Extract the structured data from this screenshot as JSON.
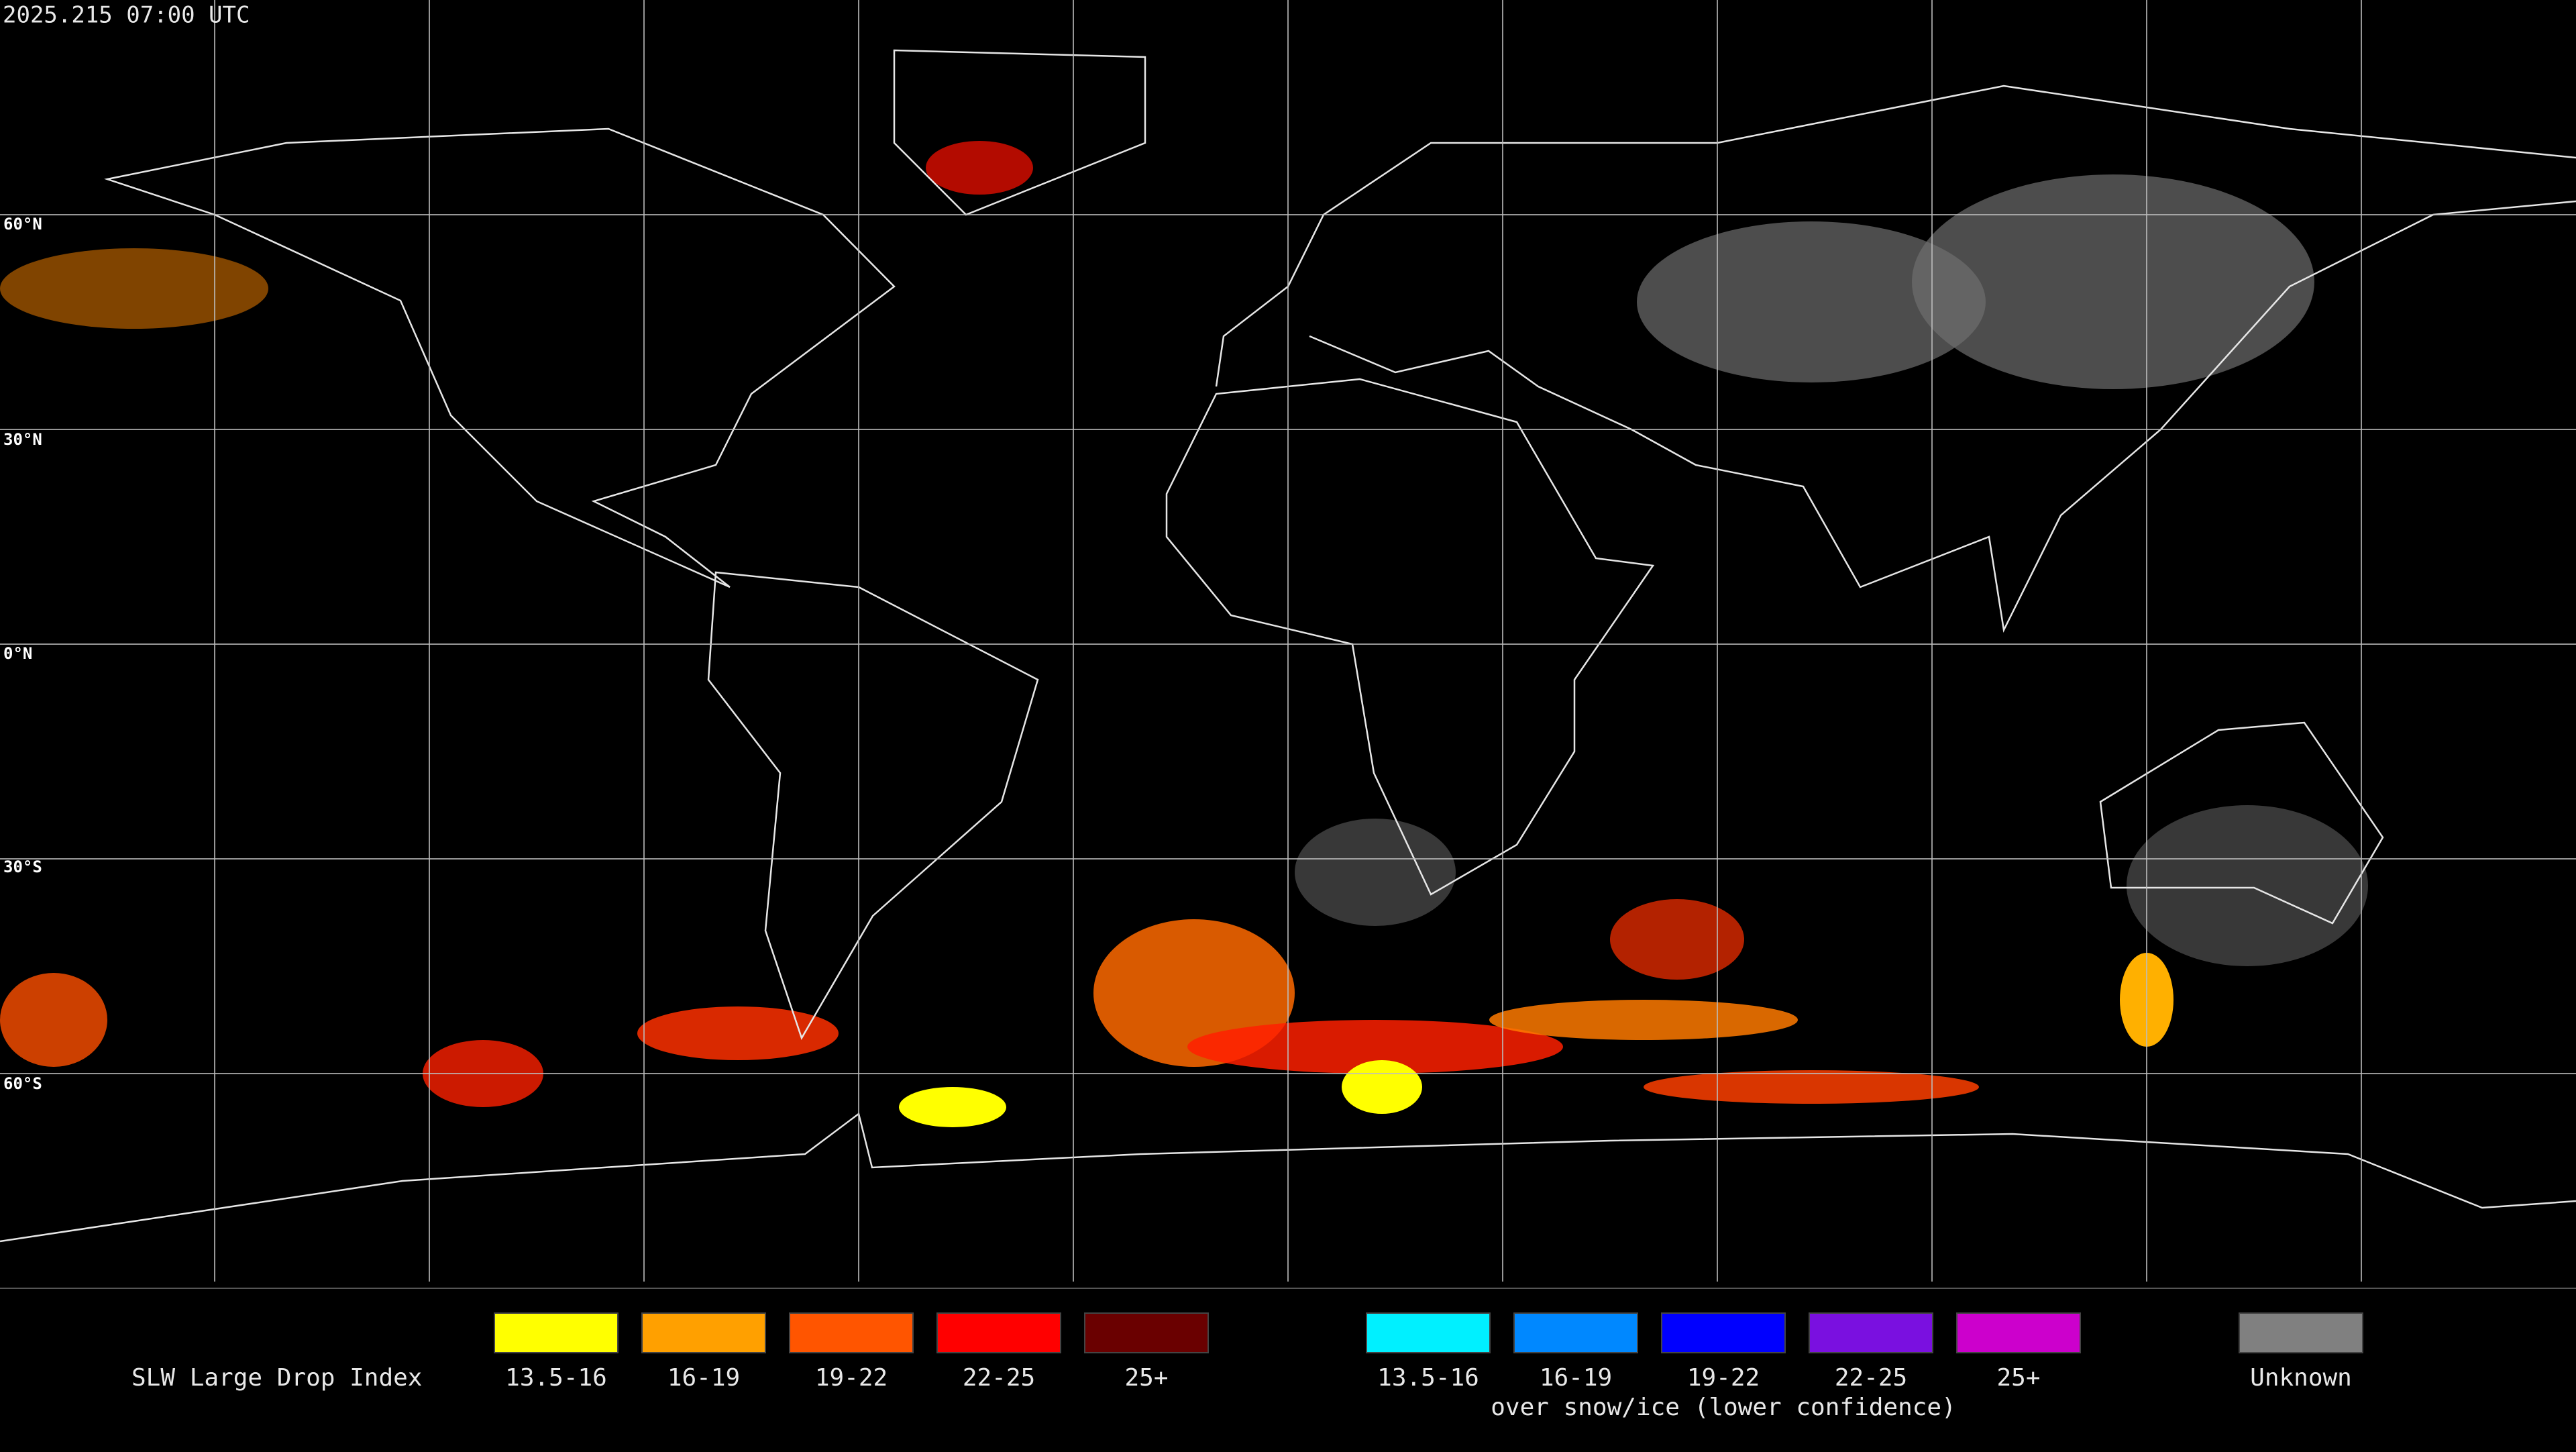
{
  "header": {
    "timestamp": "2025.215 07:00 UTC"
  },
  "map": {
    "lat_labels": [
      "60°N",
      "30°N",
      "0°N",
      "30°S",
      "60°S"
    ]
  },
  "legend": {
    "title": "SLW Large Drop Index",
    "groups": [
      {
        "items": [
          {
            "label": "13.5-16",
            "color": "#ffff00"
          },
          {
            "label": "16-19",
            "color": "#ffa000"
          },
          {
            "label": "19-22",
            "color": "#ff5500"
          },
          {
            "label": "22-25",
            "color": "#ff0000"
          },
          {
            "label": "25+",
            "color": "#6a0000"
          }
        ]
      },
      {
        "items": [
          {
            "label": "13.5-16",
            "color": "#00f0ff"
          },
          {
            "label": "16-19",
            "color": "#0088ff"
          },
          {
            "label": "19-22",
            "color": "#0000ff"
          },
          {
            "label": "22-25",
            "color": "#7a10e0"
          },
          {
            "label": "25+",
            "color": "#cc00cc"
          }
        ],
        "caption": "over snow/ice (lower confidence)"
      },
      {
        "items": [
          {
            "label": "Unknown",
            "color": "#808080"
          }
        ]
      }
    ]
  }
}
